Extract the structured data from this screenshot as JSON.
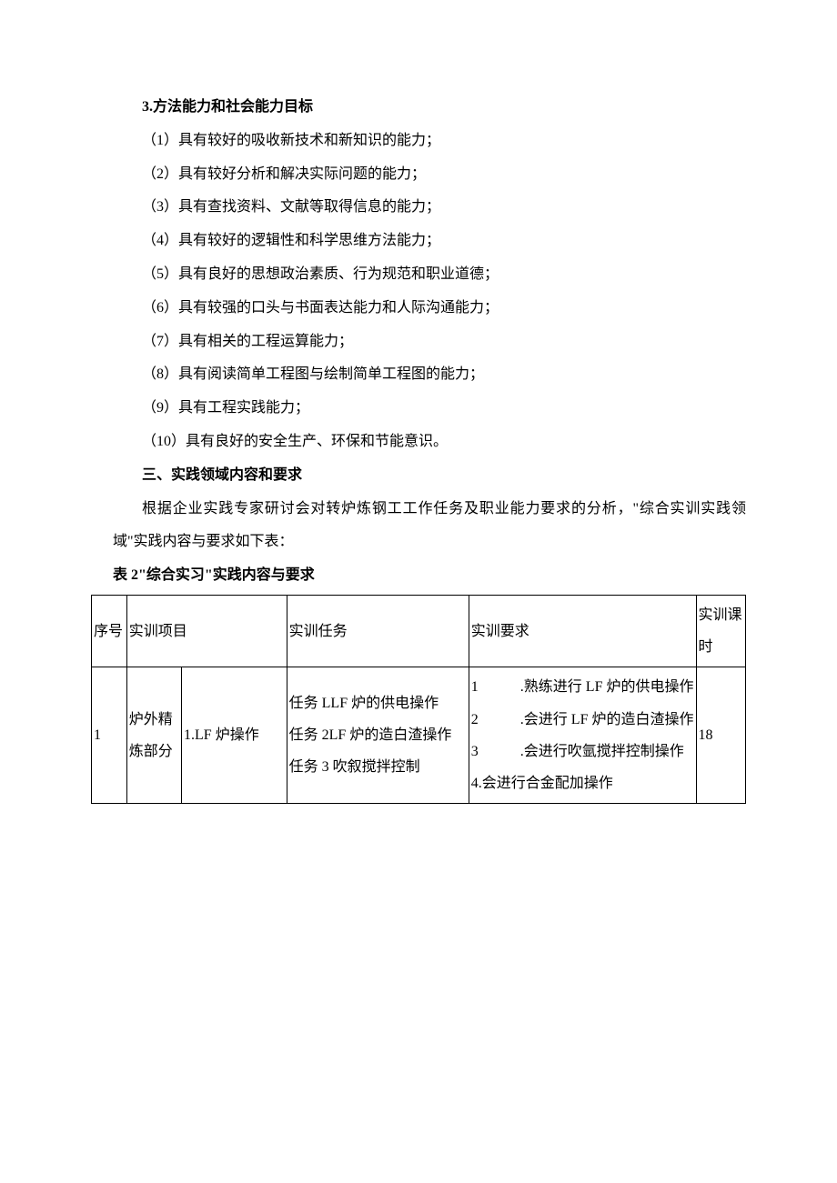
{
  "section3": {
    "title": "3.方法能力和社会能力目标",
    "items": [
      "（1）具有较好的吸收新技术和新知识的能力；",
      "（2）具有较好分析和解决实际问题的能力；",
      "（3）具有查找资料、文献等取得信息的能力；",
      "（4）具有较好的逻辑性和科学思维方法能力；",
      "（5）具有良好的思想政治素质、行为规范和职业道德；",
      "（6）具有较强的口头与书面表达能力和人际沟通能力；",
      "（7）具有相关的工程运算能力；",
      "（8）具有阅读简单工程图与绘制简单工程图的能力；",
      "（9）具有工程实践能力；",
      "（10）具有良好的安全生产、环保和节能意识。"
    ]
  },
  "section_three": {
    "title": "三、实践领域内容和要求",
    "paragraph": "根据企业实践专家研讨会对转炉炼钢工工作任务及职业能力要求的分析，\"综合实训实践领域\"实践内容与要求如下表："
  },
  "table": {
    "caption": "表 2\"综合实习\"实践内容与要求",
    "headers": {
      "seq": "序号",
      "project": "实训项目",
      "task": "实训任务",
      "requirement": "实训要求",
      "hours": "实训课时"
    },
    "rows": [
      {
        "seq": "1",
        "project_cat": "炉外精炼部分",
        "project_item": "1.LF 炉操作",
        "tasks": [
          "任务 LLF 炉的供电操作",
          "任务 2LF 炉的造白渣操作",
          "任务 3 吹叙搅拌控制"
        ],
        "requirements": [
          {
            "num": "1",
            "text": ".熟练进行 LF 炉的供电操作"
          },
          {
            "num": "2",
            "text": ".会进行 LF 炉的造白渣操作"
          },
          {
            "num": "3",
            "text": ".会进行吹氩搅拌控制操作"
          },
          {
            "num": "4.会进行合金配加操作",
            "text": ""
          }
        ],
        "hours": "18"
      }
    ]
  },
  "style": {
    "text_color": "#000000",
    "background_color": "#ffffff",
    "border_color": "#000000",
    "body_fontsize": 16,
    "line_height": 2.3
  }
}
